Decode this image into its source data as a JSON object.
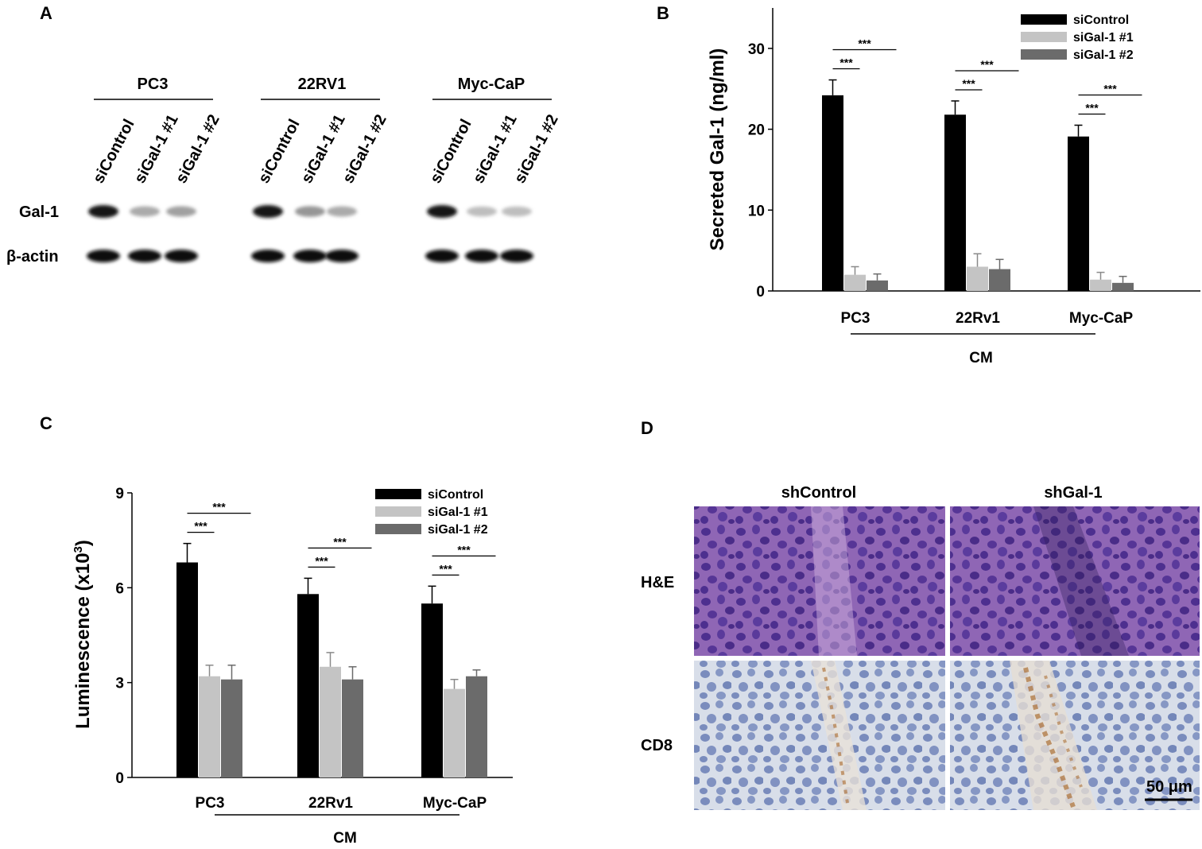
{
  "panels": {
    "a": "A",
    "b": "B",
    "c": "C",
    "d": "D"
  },
  "western_blot": {
    "groups": [
      {
        "name": "PC3",
        "lanes": [
          "siControl",
          "siGal-1 #1",
          "siGal-1 #2"
        ],
        "gal1_intensity": [
          1.0,
          0.25,
          0.3
        ]
      },
      {
        "name": "22RV1",
        "lanes": [
          "siControl",
          "siGal-1 #1",
          "siGal-1 #2"
        ],
        "gal1_intensity": [
          1.0,
          0.35,
          0.25
        ]
      },
      {
        "name": "Myc-CaP",
        "lanes": [
          "siControl",
          "siGal-1 #1",
          "siGal-1 #2"
        ],
        "gal1_intensity": [
          1.0,
          0.15,
          0.15
        ]
      }
    ],
    "rows": [
      "Gal-1",
      "β-actin"
    ]
  },
  "histology": {
    "columns": [
      "shControl",
      "shGal-1"
    ],
    "rows": [
      "H&E",
      "CD8"
    ],
    "scale_bar": "50 μm"
  },
  "colors": {
    "siControl": "#000000",
    "siGal1_1": "#c4c4c4",
    "siGal1_2": "#6b6b6b",
    "he_background": "#8a5fb0",
    "he_nuclei": "#4a2f8a",
    "cd8_background": "#d6dde8",
    "cd8_nuclei": "#5a6ea8",
    "cd8_stain": "#a8672a"
  },
  "chart_data": [
    {
      "type": "bar",
      "panel": "B",
      "categories": [
        "PC3",
        "22Rv1",
        "Myc-CaP"
      ],
      "group_label": "CM",
      "ylabel": "Secreted Gal-1 (ng/ml)",
      "ylim": [
        0,
        35
      ],
      "yticks": [
        "0",
        "10",
        "20",
        "30"
      ],
      "series": [
        {
          "name": "siControl",
          "values": [
            24.2,
            21.8,
            19.1
          ],
          "errors": [
            1.9,
            1.7,
            1.4
          ]
        },
        {
          "name": "siGal-1 #1",
          "values": [
            2.0,
            3.0,
            1.4
          ],
          "errors": [
            1.0,
            1.6,
            0.9
          ]
        },
        {
          "name": "siGal-1 #2",
          "values": [
            1.3,
            2.7,
            1.0
          ],
          "errors": [
            0.8,
            1.2,
            0.8
          ]
        }
      ],
      "significance": "***",
      "legend": "top-right"
    },
    {
      "type": "bar",
      "panel": "C",
      "categories": [
        "PC3",
        "22Rv1",
        "Myc-CaP"
      ],
      "group_label": "CM",
      "ylabel": "Luminescence (x10",
      "ylabel_sup": "3",
      "ylabel_end": ")",
      "ylim": [
        0,
        9
      ],
      "yticks": [
        "0",
        "3",
        "6",
        "9"
      ],
      "series": [
        {
          "name": "siControl",
          "values": [
            6.8,
            5.8,
            5.5
          ],
          "errors": [
            0.6,
            0.5,
            0.55
          ]
        },
        {
          "name": "siGal-1 #1",
          "values": [
            3.2,
            3.5,
            2.8
          ],
          "errors": [
            0.35,
            0.45,
            0.3
          ]
        },
        {
          "name": "siGal-1 #2",
          "values": [
            3.1,
            3.1,
            3.2
          ],
          "errors": [
            0.45,
            0.4,
            0.2
          ]
        }
      ],
      "significance": "***",
      "legend": "top-right"
    }
  ]
}
